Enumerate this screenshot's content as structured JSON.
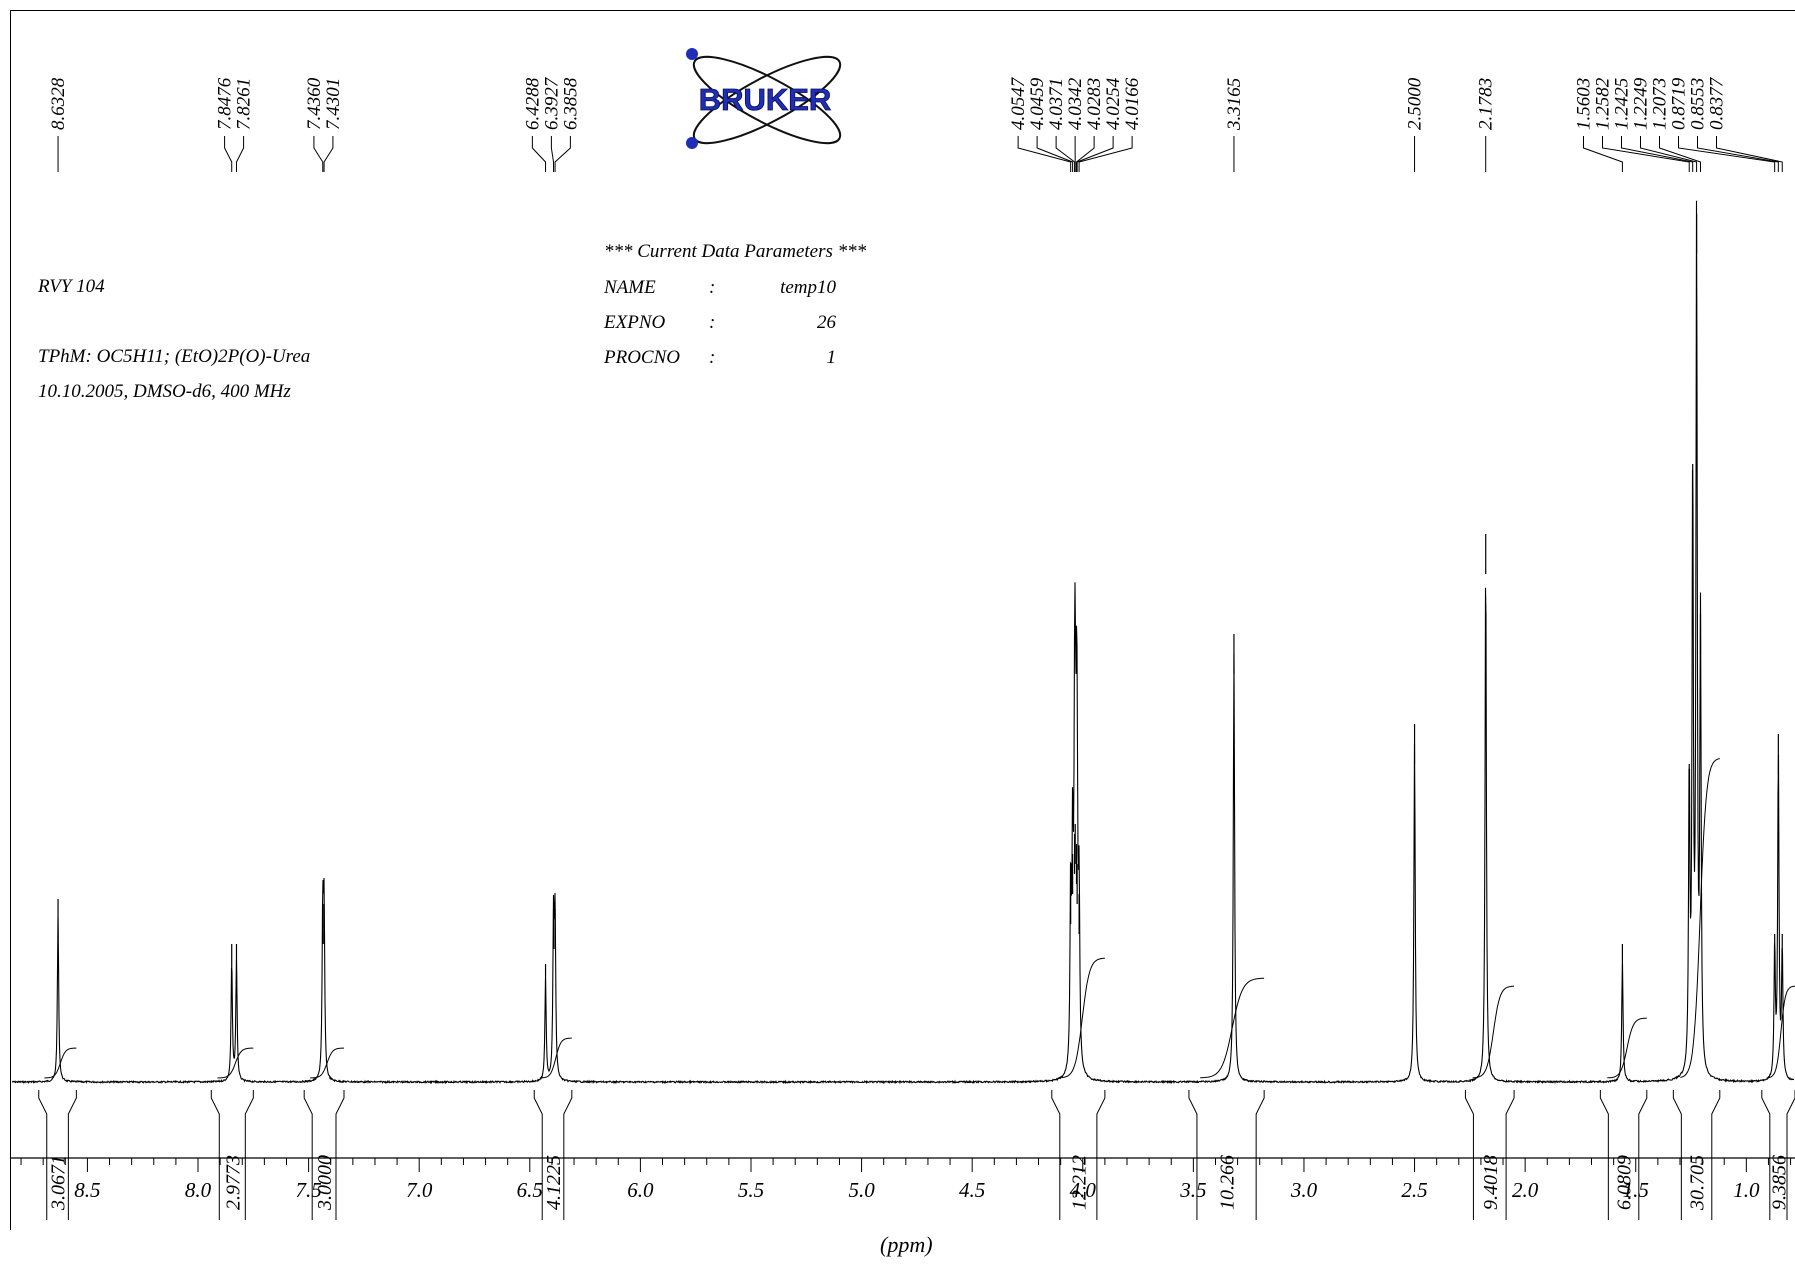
{
  "sample": {
    "id": "RVY 104",
    "compound": "TPhM: OC5H11; (EtO)2P(O)-Urea",
    "conditions": "10.10.2005, DMSO-d6, 400 MHz"
  },
  "parameters": {
    "title": "*** Current Data Parameters ***",
    "rows": [
      {
        "key": "NAME",
        "sep": ":",
        "value": "temp10"
      },
      {
        "key": "EXPNO",
        "sep": ":",
        "value": "26"
      },
      {
        "key": "PROCNO",
        "sep": ":",
        "value": "1"
      }
    ]
  },
  "logo": {
    "text": "BRUKER",
    "color": "#1f2fb5"
  },
  "chart_data": {
    "type": "line",
    "xlabel": "(ppm)",
    "xlim": [
      8.85,
      0.78
    ],
    "x_reversed": true,
    "ticks": [
      "8.5",
      "8.0",
      "7.5",
      "7.0",
      "6.5",
      "6.0",
      "5.5",
      "5.0",
      "4.5",
      "4.0",
      "3.5",
      "3.0",
      "2.5",
      "2.0",
      "1.5",
      "1.0"
    ],
    "peak_labels": [
      {
        "group": [
          "8.6328"
        ]
      },
      {
        "group": [
          "7.8476",
          "7.8261"
        ]
      },
      {
        "group": [
          "7.4360",
          "7.4301"
        ]
      },
      {
        "group": [
          "6.4288",
          "6.3927",
          "6.3858"
        ]
      },
      {
        "group": [
          "4.0547",
          "4.0459",
          "4.0371",
          "4.0342",
          "4.0283",
          "4.0254",
          "4.0166"
        ]
      },
      {
        "group": [
          "3.3165"
        ]
      },
      {
        "group": [
          "2.5000"
        ]
      },
      {
        "group": [
          "2.1783"
        ]
      },
      {
        "group": [
          "1.5603",
          "1.2582",
          "1.2425",
          "1.2249",
          "1.2073",
          "0.8719",
          "0.8553",
          "0.8377"
        ]
      }
    ],
    "peaks": [
      {
        "ppm": 8.6328,
        "height": 0.165
      },
      {
        "ppm": 7.8476,
        "height": 0.12
      },
      {
        "ppm": 7.8261,
        "height": 0.12
      },
      {
        "ppm": 7.436,
        "height": 0.16
      },
      {
        "ppm": 7.4301,
        "height": 0.16
      },
      {
        "ppm": 6.4288,
        "height": 0.1
      },
      {
        "ppm": 6.3927,
        "height": 0.155
      },
      {
        "ppm": 6.3858,
        "height": 0.155
      },
      {
        "ppm": 4.0547,
        "height": 0.18
      },
      {
        "ppm": 4.0459,
        "height": 0.21
      },
      {
        "ppm": 4.0371,
        "height": 0.23
      },
      {
        "ppm": 4.0342,
        "height": 0.24
      },
      {
        "ppm": 4.0283,
        "height": 0.22
      },
      {
        "ppm": 4.0254,
        "height": 0.2
      },
      {
        "ppm": 4.0166,
        "height": 0.17
      },
      {
        "ppm": 3.3165,
        "height": 0.43
      },
      {
        "ppm": 2.5,
        "height": 0.34
      },
      {
        "ppm": 2.1783,
        "height": 0.53
      },
      {
        "ppm": 1.5603,
        "height": 0.12
      },
      {
        "ppm": 1.2582,
        "height": 0.3
      },
      {
        "ppm": 1.2425,
        "height": 0.6
      },
      {
        "ppm": 1.2249,
        "height": 0.85
      },
      {
        "ppm": 1.2073,
        "height": 0.45
      },
      {
        "ppm": 0.8719,
        "height": 0.13
      },
      {
        "ppm": 0.8553,
        "height": 0.33
      },
      {
        "ppm": 0.8377,
        "height": 0.13
      }
    ],
    "integrals": [
      {
        "from": 8.72,
        "to": 8.55,
        "value": "3.0671"
      },
      {
        "from": 7.94,
        "to": 7.75,
        "value": "2.9773"
      },
      {
        "from": 7.52,
        "to": 7.34,
        "value": "3.0000"
      },
      {
        "from": 6.48,
        "to": 6.31,
        "value": "4.1225"
      },
      {
        "from": 4.14,
        "to": 3.9,
        "value": "12.212"
      },
      {
        "from": 3.52,
        "to": 3.18,
        "value": "10.266"
      },
      {
        "from": 2.27,
        "to": 2.05,
        "value": "9.4018"
      },
      {
        "from": 1.66,
        "to": 1.45,
        "value": "6.0809"
      },
      {
        "from": 1.33,
        "to": 1.12,
        "value": "30.705"
      },
      {
        "from": 0.93,
        "to": 0.78,
        "value": "9.3856"
      }
    ]
  }
}
